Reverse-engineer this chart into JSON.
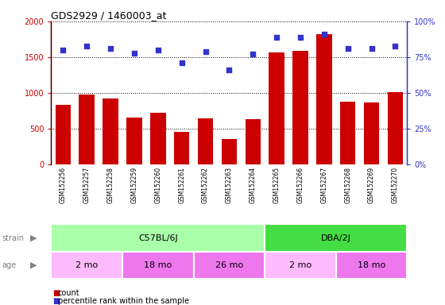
{
  "title": "GDS2929 / 1460003_at",
  "samples": [
    "GSM152256",
    "GSM152257",
    "GSM152258",
    "GSM152259",
    "GSM152260",
    "GSM152261",
    "GSM152262",
    "GSM152263",
    "GSM152264",
    "GSM152265",
    "GSM152266",
    "GSM152267",
    "GSM152268",
    "GSM152269",
    "GSM152270"
  ],
  "counts": [
    840,
    980,
    920,
    660,
    720,
    460,
    650,
    360,
    640,
    1570,
    1590,
    1820,
    880,
    870,
    1010
  ],
  "percentile": [
    80,
    83,
    81,
    78,
    80,
    71,
    79,
    66,
    77,
    89,
    89,
    91,
    81,
    81,
    83
  ],
  "bar_color": "#cc0000",
  "dot_color": "#3333cc",
  "ylim_left": [
    0,
    2000
  ],
  "ylim_right": [
    0,
    100
  ],
  "yticks_left": [
    0,
    500,
    1000,
    1500,
    2000
  ],
  "ytick_labels_left": [
    "0",
    "500",
    "1000",
    "1500",
    "2000"
  ],
  "yticks_right": [
    0,
    25,
    50,
    75,
    100
  ],
  "ytick_labels_right": [
    "0%",
    "25%",
    "50%",
    "75%",
    "100%"
  ],
  "strain_groups": [
    {
      "label": "C57BL/6J",
      "start": 0,
      "end": 9,
      "color": "#aaffaa"
    },
    {
      "label": "DBA/2J",
      "start": 9,
      "end": 15,
      "color": "#44dd44"
    }
  ],
  "age_groups": [
    {
      "label": "2 mo",
      "start": 0,
      "end": 3,
      "color": "#ffbbff"
    },
    {
      "label": "18 mo",
      "start": 3,
      "end": 6,
      "color": "#ee77ee"
    },
    {
      "label": "26 mo",
      "start": 6,
      "end": 9,
      "color": "#ee77ee"
    },
    {
      "label": "2 mo",
      "start": 9,
      "end": 12,
      "color": "#ffbbff"
    },
    {
      "label": "18 mo",
      "start": 12,
      "end": 15,
      "color": "#ee77ee"
    }
  ],
  "strain_label": "strain",
  "age_label": "age",
  "legend_count_label": "count",
  "legend_pct_label": "percentile rank within the sample",
  "bg_color": "#ffffff",
  "tick_area_bg": "#cccccc",
  "label_area_color": "#eeeeee"
}
